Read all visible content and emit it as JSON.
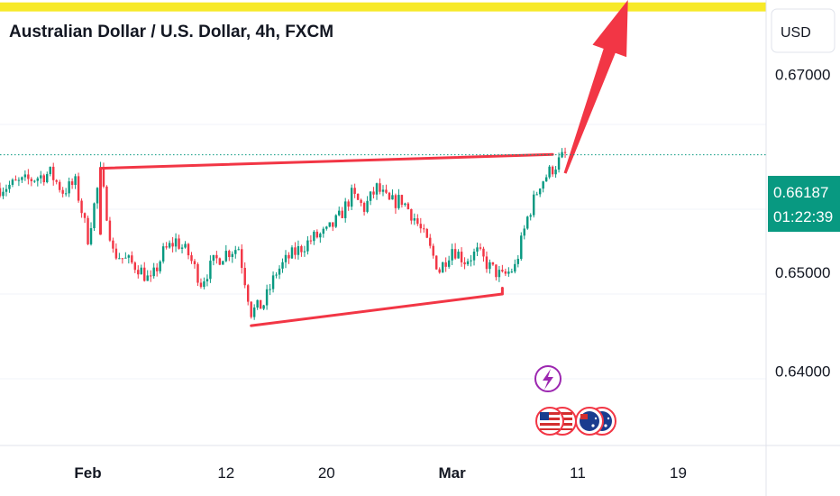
{
  "header": {
    "title": "Australian Dollar / U.S. Dollar, 4h, FXCM"
  },
  "currency_button": {
    "label": "USD"
  },
  "last_price": {
    "value": "0.66187",
    "countdown": "01:22:39",
    "color": "#089981"
  },
  "colors": {
    "up": "#089981",
    "down": "#f23645",
    "resistance": "#f7e928",
    "drawing": "#f23645",
    "arrow": "#f23645"
  },
  "event_icons": [
    "lightning-icon",
    "us-flag-icon",
    "us-flag-icon",
    "au-flag-icon",
    "au-flag-icon"
  ],
  "chart_data": {
    "type": "candlestick",
    "title": "Australian Dollar / U.S. Dollar, 4h, FXCM",
    "y_ticks": [
      0.64,
      0.65,
      0.67
    ],
    "x_ticks": [
      {
        "label": "Feb",
        "date": "2024-02-01",
        "bold": true
      },
      {
        "label": "12",
        "date": "2024-02-12",
        "bold": false
      },
      {
        "label": "20",
        "date": "2024-02-20",
        "bold": false
      },
      {
        "label": "Mar",
        "date": "2024-03-01",
        "bold": true
      },
      {
        "label": "11",
        "date": "2024-03-11",
        "bold": false
      },
      {
        "label": "19",
        "date": "2024-03-19",
        "bold": false
      }
    ],
    "x_range": [
      "2024-01-25",
      "2024-03-26"
    ],
    "y_range": [
      0.6325,
      0.6775
    ],
    "path_points": [
      [
        "2024-01-25",
        0.6585
      ],
      [
        "2024-01-27",
        0.6592
      ],
      [
        "2024-01-29",
        0.66
      ],
      [
        "2024-01-30",
        0.6582
      ],
      [
        "2024-01-31",
        0.659
      ],
      [
        "2024-02-01",
        0.6535
      ],
      [
        "2024-02-02",
        0.66
      ],
      [
        "2024-02-03",
        0.652
      ],
      [
        "2024-02-05",
        0.6505
      ],
      [
        "2024-02-06",
        0.649
      ],
      [
        "2024-02-07",
        0.652
      ],
      [
        "2024-02-08",
        0.6532
      ],
      [
        "2024-02-09",
        0.6518
      ],
      [
        "2024-02-10",
        0.649
      ],
      [
        "2024-02-11",
        0.651
      ],
      [
        "2024-02-12",
        0.652
      ],
      [
        "2024-02-13",
        0.6525
      ],
      [
        "2024-02-14",
        0.646
      ],
      [
        "2024-02-15",
        0.6468
      ],
      [
        "2024-02-16",
        0.65
      ],
      [
        "2024-02-17",
        0.6515
      ],
      [
        "2024-02-19",
        0.6535
      ],
      [
        "2024-02-20",
        0.654
      ],
      [
        "2024-02-21",
        0.6555
      ],
      [
        "2024-02-22",
        0.6578
      ],
      [
        "2024-02-23",
        0.6565
      ],
      [
        "2024-02-24",
        0.6585
      ],
      [
        "2024-02-25",
        0.657
      ],
      [
        "2024-02-26",
        0.6573
      ],
      [
        "2024-02-27",
        0.6555
      ],
      [
        "2024-02-28",
        0.653
      ],
      [
        "2024-02-29",
        0.6502
      ],
      [
        "2024-03-01",
        0.6525
      ],
      [
        "2024-03-02",
        0.6512
      ],
      [
        "2024-03-03",
        0.652
      ],
      [
        "2024-03-04",
        0.6505
      ],
      [
        "2024-03-05",
        0.6495
      ],
      [
        "2024-03-06",
        0.6505
      ],
      [
        "2024-03-07",
        0.6555
      ],
      [
        "2024-03-08",
        0.659
      ],
      [
        "2024-03-09",
        0.6605
      ],
      [
        "2024-03-10",
        0.6619
      ]
    ],
    "resistance_level": 0.6768,
    "drawings": [
      {
        "type": "trendline",
        "from": [
          "2024-02-02",
          0.6605
        ],
        "to": [
          "2024-03-09",
          0.6619
        ]
      },
      {
        "type": "trendline",
        "from": [
          "2024-02-02",
          0.6605
        ],
        "to": [
          "2024-02-02",
          0.6539
        ]
      },
      {
        "type": "trendline",
        "from": [
          "2024-02-14",
          0.6446
        ],
        "to": [
          "2024-03-05",
          0.6478
        ]
      },
      {
        "type": "trendline",
        "from": [
          "2024-03-05",
          0.6478
        ],
        "to": [
          "2024-03-05",
          0.6484
        ]
      }
    ],
    "arrow": {
      "from": [
        "2024-03-10",
        0.66
      ],
      "to": [
        "2024-03-15",
        0.6775
      ]
    },
    "last_price": 0.66187
  }
}
